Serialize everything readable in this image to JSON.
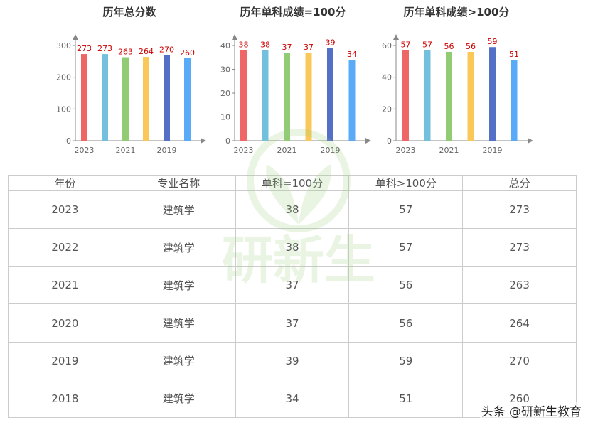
{
  "chart_data": [
    {
      "type": "bar",
      "title": "历年总分数",
      "categories": [
        "2023",
        "2022",
        "2021",
        "2020",
        "2019",
        "2018"
      ],
      "tick_labels_x": [
        "2023",
        "2021",
        "2019"
      ],
      "values": [
        273,
        273,
        263,
        264,
        270,
        260
      ],
      "ylim": [
        0,
        300
      ],
      "yticks": [
        0,
        100,
        200,
        300
      ],
      "bar_colors": [
        "#ee6666",
        "#73c0de",
        "#91cc75",
        "#fac858",
        "#5470c6",
        "#5aabf7"
      ],
      "grid": false
    },
    {
      "type": "bar",
      "title": "历年单科成绩=100分",
      "categories": [
        "2023",
        "2022",
        "2021",
        "2020",
        "2019",
        "2018"
      ],
      "tick_labels_x": [
        "2023",
        "2021",
        "2019"
      ],
      "values": [
        38,
        38,
        37,
        37,
        39,
        34
      ],
      "ylim": [
        0,
        40
      ],
      "yticks": [
        0,
        10,
        20,
        30,
        40
      ],
      "bar_colors": [
        "#ee6666",
        "#73c0de",
        "#91cc75",
        "#fac858",
        "#5470c6",
        "#5aabf7"
      ],
      "grid": false
    },
    {
      "type": "bar",
      "title": "历年单科成绩>100分",
      "categories": [
        "2023",
        "2022",
        "2021",
        "2020",
        "2019",
        "2018"
      ],
      "tick_labels_x": [
        "2023",
        "2021",
        "2019"
      ],
      "values": [
        57,
        57,
        56,
        56,
        59,
        51
      ],
      "ylim": [
        0,
        60
      ],
      "yticks": [
        0,
        20,
        40,
        60
      ],
      "bar_colors": [
        "#ee6666",
        "#73c0de",
        "#91cc75",
        "#fac858",
        "#5470c6",
        "#5aabf7"
      ],
      "grid": false
    }
  ],
  "table": {
    "headers": [
      "年份",
      "专业名称",
      "单科=100分",
      "单科>100分",
      "总分"
    ],
    "rows": [
      [
        "2023",
        "建筑学",
        "38",
        "57",
        "273"
      ],
      [
        "2022",
        "建筑学",
        "38",
        "57",
        "273"
      ],
      [
        "2021",
        "建筑学",
        "37",
        "56",
        "263"
      ],
      [
        "2020",
        "建筑学",
        "37",
        "56",
        "264"
      ],
      [
        "2019",
        "建筑学",
        "39",
        "59",
        "270"
      ],
      [
        "2018",
        "建筑学",
        "34",
        "51",
        "260"
      ]
    ]
  },
  "watermark": {
    "logo_text": "研新生"
  },
  "footer": {
    "source": "头条 @研新生教育"
  }
}
